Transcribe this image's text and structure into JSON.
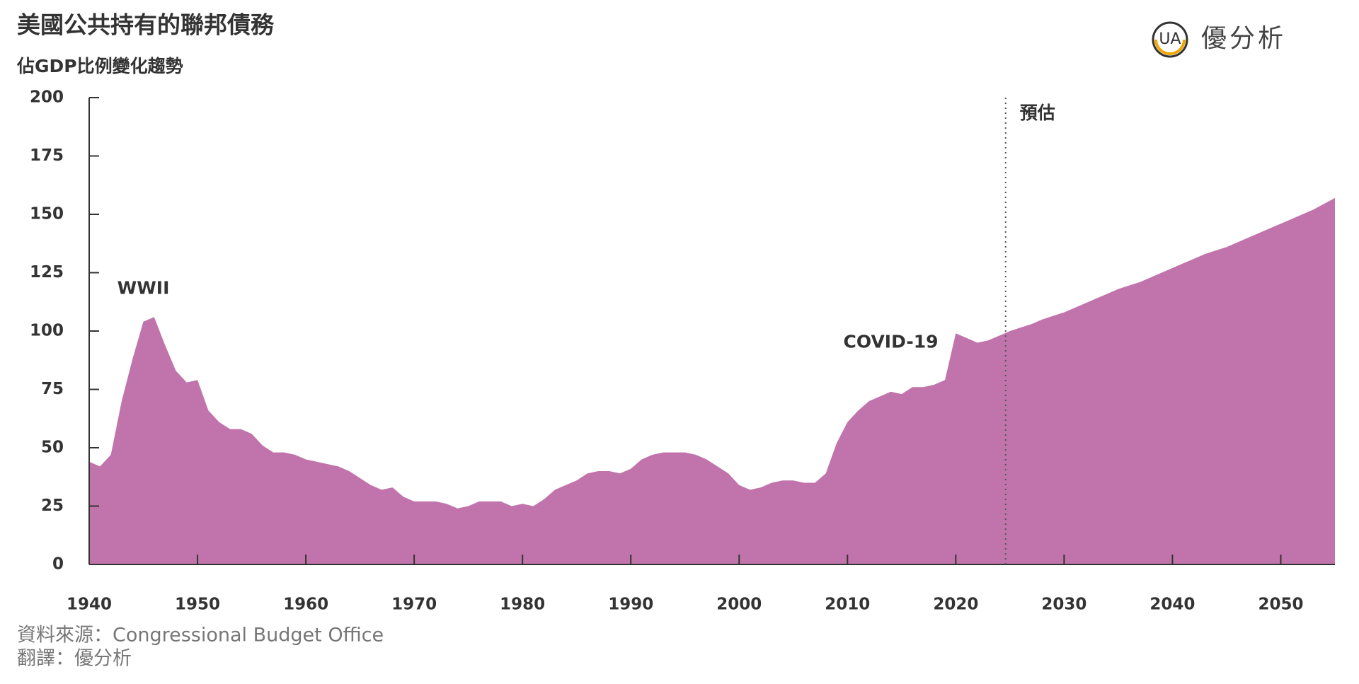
{
  "chart_data": {
    "type": "area",
    "title": "美國公共持有的聯邦債務",
    "subtitle": "佔GDP比例變化趨勢",
    "source": "資料來源：Congressional Budget Office",
    "translation": "翻譯：優分析",
    "logo": "優分析",
    "color": "#c174ab",
    "x": [
      1940,
      1941,
      1942,
      1943,
      1944,
      1945,
      1946,
      1947,
      1948,
      1949,
      1950,
      1951,
      1952,
      1953,
      1954,
      1955,
      1956,
      1957,
      1958,
      1959,
      1960,
      1961,
      1962,
      1963,
      1964,
      1965,
      1966,
      1967,
      1968,
      1969,
      1970,
      1971,
      1972,
      1973,
      1974,
      1975,
      1976,
      1977,
      1978,
      1979,
      1980,
      1981,
      1982,
      1983,
      1984,
      1985,
      1986,
      1987,
      1988,
      1989,
      1990,
      1991,
      1992,
      1993,
      1994,
      1995,
      1996,
      1997,
      1998,
      1999,
      2000,
      2001,
      2002,
      2003,
      2004,
      2005,
      2006,
      2007,
      2008,
      2009,
      2010,
      2011,
      2012,
      2013,
      2014,
      2015,
      2016,
      2017,
      2018,
      2019,
      2020,
      2021,
      2022,
      2023,
      2024,
      2025,
      2026,
      2027,
      2028,
      2029,
      2030,
      2031,
      2032,
      2033,
      2034,
      2035,
      2036,
      2037,
      2038,
      2039,
      2040,
      2041,
      2042,
      2043,
      2044,
      2045,
      2046,
      2047,
      2048,
      2049,
      2050,
      2051,
      2052,
      2053,
      2054,
      2055
    ],
    "values": [
      44,
      42,
      47,
      70,
      88,
      104,
      106,
      94,
      83,
      78,
      79,
      66,
      61,
      58,
      58,
      56,
      51,
      48,
      48,
      47,
      45,
      44,
      43,
      42,
      40,
      37,
      34,
      32,
      33,
      29,
      27,
      27,
      27,
      26,
      24,
      25,
      27,
      27,
      27,
      25,
      26,
      25,
      28,
      32,
      34,
      36,
      39,
      40,
      40,
      39,
      41,
      45,
      47,
      48,
      48,
      48,
      47,
      45,
      42,
      39,
      34,
      32,
      33,
      35,
      36,
      36,
      35,
      35,
      39,
      52,
      61,
      66,
      70,
      72,
      74,
      73,
      76,
      76,
      77,
      79,
      99,
      97,
      95,
      96,
      98,
      100,
      101.5,
      103,
      105,
      106.5,
      108,
      110,
      112,
      114,
      116,
      118,
      119.5,
      121,
      123,
      125,
      127,
      129,
      131,
      133,
      134.5,
      136,
      138,
      140,
      142,
      144,
      146,
      148,
      150,
      152,
      154.5,
      157
    ],
    "xlim": [
      1940,
      2055
    ],
    "xticks": [
      1940,
      1950,
      1960,
      1970,
      1980,
      1990,
      2000,
      2010,
      2020,
      2030,
      2040,
      2050
    ],
    "ylim": [
      0,
      200
    ],
    "yticks": [
      0,
      25,
      50,
      75,
      100,
      125,
      150,
      175,
      200
    ],
    "annotations": [
      {
        "text": "WWII",
        "x": 1945,
        "y": 118
      },
      {
        "text": "COVID-19",
        "x": 2014,
        "y": 95
      }
    ],
    "forecast": {
      "label": "預估",
      "x": 2024.6
    }
  }
}
